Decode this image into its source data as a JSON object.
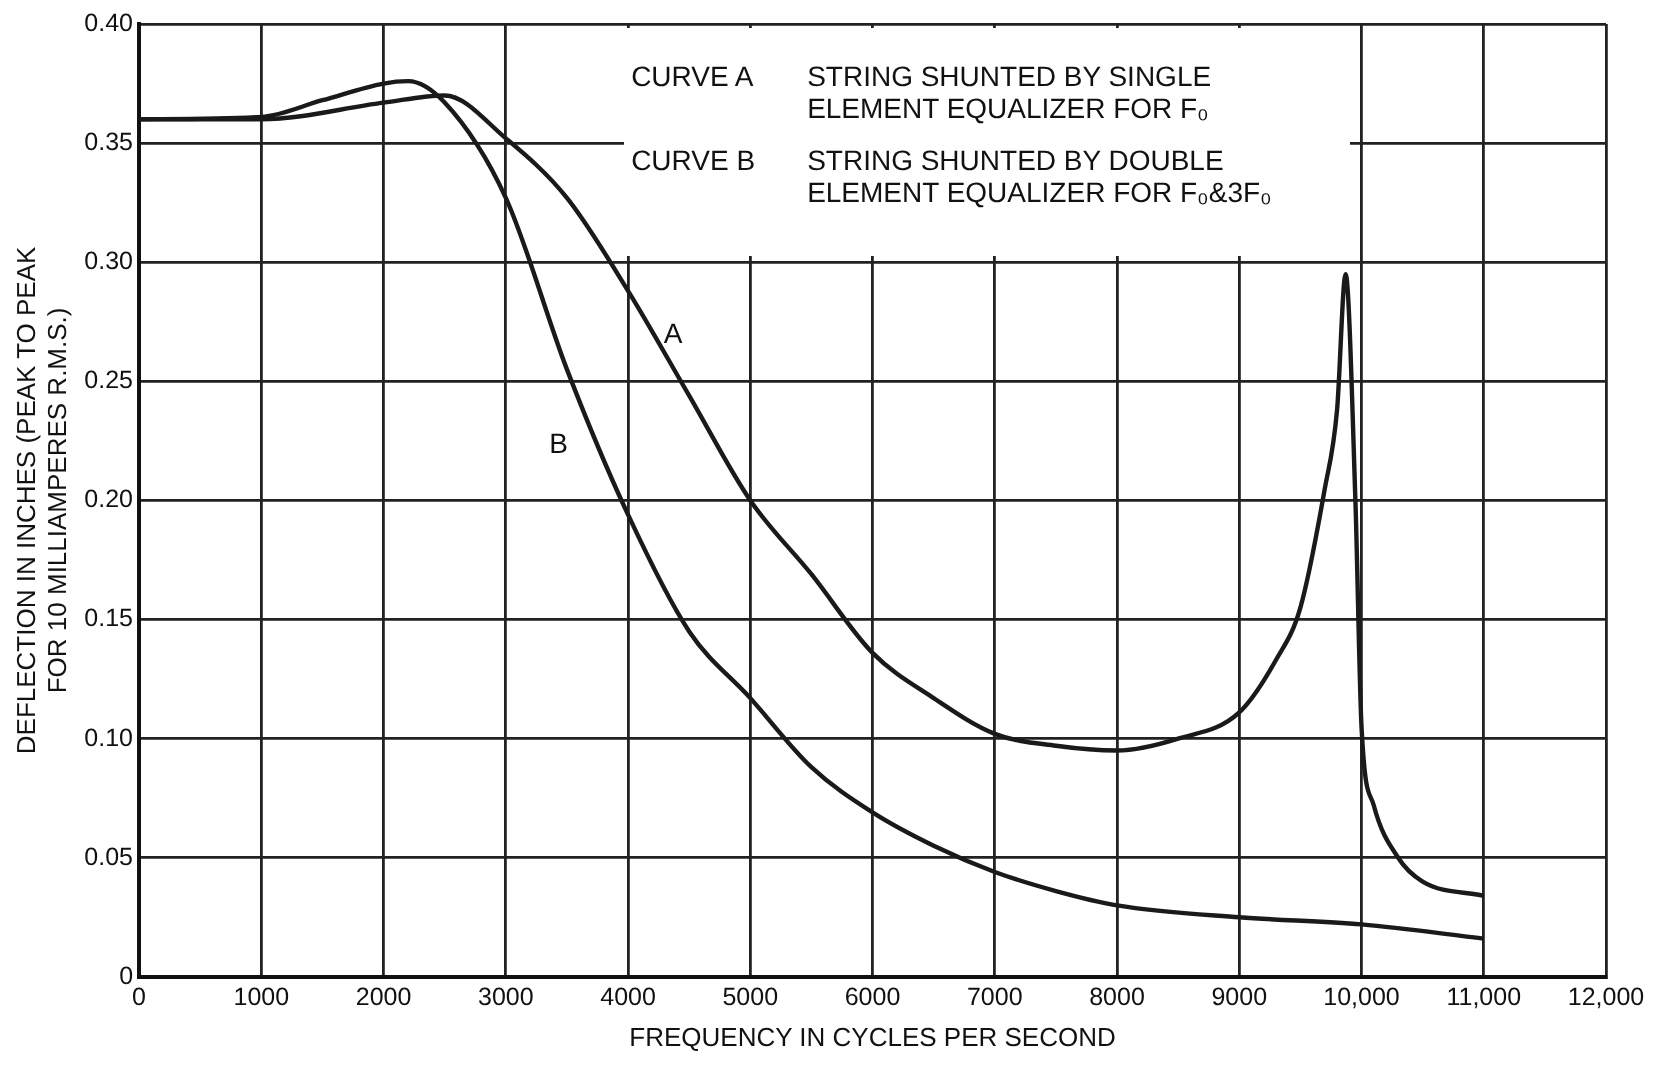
{
  "chart_data": {
    "type": "line",
    "xlabel": "FREQUENCY IN CYCLES PER SECOND",
    "ylabel": "DEFLECTION IN INCHES (PEAK TO PEAK\nFOR 10 MILLIAMPERES R.M.S.)",
    "series": [
      {
        "color": "#1a1a1a",
        "x": [
          0,
          1000,
          2000,
          2500,
          3000,
          3500,
          4000,
          4500,
          5000,
          5500,
          6000,
          6500,
          7000,
          7500,
          8000,
          8500,
          9000,
          9300,
          9500,
          9700,
          9800,
          9870,
          9950,
          10000,
          10100,
          10300,
          10500,
          11000
        ],
        "values": [
          0.36,
          0.36,
          0.367,
          0.37,
          0.352,
          0.327,
          0.288,
          0.244,
          0.2,
          0.169,
          0.136,
          0.117,
          0.102,
          0.097,
          0.095,
          0.1,
          0.111,
          0.133,
          0.155,
          0.205,
          0.238,
          0.295,
          0.2,
          0.105,
          0.072,
          0.05,
          0.04,
          0.034
        ]
      },
      {
        "color": "#1a1a1a",
        "x": [
          0,
          1000,
          1500,
          2000,
          2200,
          2500,
          3000,
          3500,
          4000,
          4500,
          5000,
          5500,
          6000,
          6500,
          7000,
          7500,
          8000,
          9000,
          10000,
          11000
        ],
        "values": [
          0.36,
          0.361,
          0.368,
          0.375,
          0.376,
          0.367,
          0.327,
          0.255,
          0.194,
          0.145,
          0.117,
          0.088,
          0.069,
          0.055,
          0.044,
          0.036,
          0.03,
          0.025,
          0.022,
          0.016
        ]
      }
    ],
    "xlim": [
      0,
      12000
    ],
    "xticks": [
      0,
      1000,
      2000,
      3000,
      4000,
      5000,
      6000,
      7000,
      8000,
      9000,
      {
        "value": 10000,
        "label": "10,000"
      },
      {
        "value": 11000,
        "label": "11,000"
      },
      {
        "value": 12000,
        "label": "12,000"
      }
    ],
    "ylim": [
      0,
      0.4
    ],
    "yticks": [
      0,
      0.05,
      {
        "value": 0.1,
        "label": "0.10"
      },
      0.15,
      {
        "value": 0.2,
        "label": "0.20"
      },
      0.25,
      {
        "value": 0.3,
        "label": "0.30"
      },
      0.35,
      {
        "value": 0.4,
        "label": "0.40"
      }
    ],
    "grid": true,
    "legend": false,
    "marker": "none",
    "line_style": "solid",
    "annotations": [
      "CURVE A",
      "STRING SHUNTED BY SINGLE\nELEMENT EQUALIZER FOR F₀",
      "CURVE B",
      "STRING SHUNTED BY DOUBLE\nELEMENT EQUALIZER FOR F₀&3F₀",
      "A",
      "B"
    ]
  }
}
